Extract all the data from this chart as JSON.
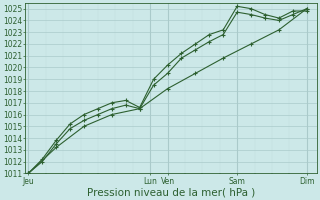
{
  "title": "Pression niveau de la mer( hPa )",
  "background_color": "#cce8e8",
  "plot_bg_color": "#cce8e8",
  "grid_major_color": "#aacaca",
  "grid_minor_color": "#c0dede",
  "line_color": "#2d6030",
  "ylim": [
    1011,
    1025.5
  ],
  "ytick_min": 1011,
  "ytick_max": 1025,
  "day_labels": [
    "Jeu",
    "Lun",
    "Ven",
    "Sam",
    "Dim"
  ],
  "day_positions": [
    0,
    3.5,
    4.0,
    6.0,
    8.0
  ],
  "xlim": [
    -0.1,
    8.3
  ],
  "line1_x": [
    0,
    0.4,
    0.8,
    1.2,
    1.6,
    2.0,
    2.4,
    2.8,
    3.2,
    3.6,
    4.0,
    4.4,
    4.8,
    5.2,
    5.6,
    6.0,
    6.4,
    6.8,
    7.2,
    7.6,
    8.0
  ],
  "line1_y": [
    1011,
    1012,
    1013.5,
    1014.8,
    1015.5,
    1016.0,
    1016.5,
    1016.8,
    1016.5,
    1018.5,
    1019.5,
    1020.8,
    1021.5,
    1022.2,
    1022.8,
    1024.7,
    1024.5,
    1024.2,
    1024.0,
    1024.5,
    1025.0
  ],
  "line2_x": [
    0,
    0.4,
    0.8,
    1.2,
    1.6,
    2.0,
    2.4,
    2.8,
    3.2,
    3.6,
    4.0,
    4.4,
    4.8,
    5.2,
    5.6,
    6.0,
    6.4,
    6.8,
    7.2,
    7.6,
    8.0
  ],
  "line2_y": [
    1011,
    1012.2,
    1013.8,
    1015.2,
    1016.0,
    1016.5,
    1017.0,
    1017.2,
    1016.6,
    1019.0,
    1020.2,
    1021.2,
    1022.0,
    1022.8,
    1023.2,
    1025.2,
    1025.0,
    1024.5,
    1024.2,
    1024.8,
    1024.8
  ],
  "line3_x": [
    0,
    0.8,
    1.6,
    2.4,
    3.2,
    4.0,
    4.8,
    5.6,
    6.4,
    7.2,
    8.0
  ],
  "line3_y": [
    1011,
    1013.2,
    1015.0,
    1016.0,
    1016.5,
    1018.2,
    1019.5,
    1020.8,
    1022.0,
    1023.2,
    1025.0
  ],
  "marker": "+",
  "marker_size": 3.5,
  "linewidth": 0.8,
  "fontsize_ticks": 5.5,
  "fontsize_label": 7.5
}
